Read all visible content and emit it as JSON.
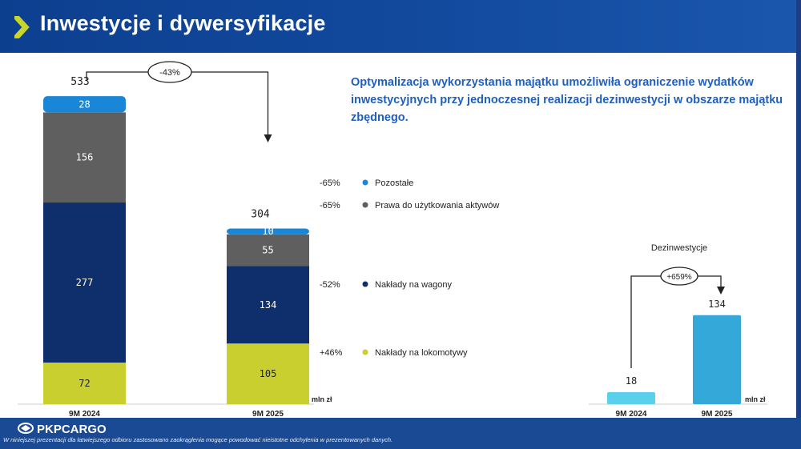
{
  "header": {
    "title": "Inwestycje i dywersyfikacje"
  },
  "headline": "Optymalizacja wykorzystania majątku umożliwiła ograniczenie wydatków inwestycyjnych przy jednoczesnej realizacji dezinwestycji w obszarze majątku zbędnego.",
  "footer": {
    "logo": "PKPCARGO",
    "note": "W niniejszej prezentacji dla łatwiejszego odbioru zastosowano zaokrąglenia mogące powodować nieistotne odchylenia w prezentowanych danych."
  },
  "colors": {
    "pozostale": "#1a86d8",
    "prawa": "#5f5f5f",
    "wagony": "#0e2f6b",
    "lokomotywy": "#c8cf2e",
    "dezinwestycje_2024": "#5ad0ea",
    "dezinwestycje_2025": "#34a9d9"
  },
  "chart_data": [
    {
      "type": "bar",
      "stacked": true,
      "categories": [
        "9M 2024",
        "9M 2025"
      ],
      "unit": "mln zł",
      "totals": [
        "533",
        "304"
      ],
      "total_change": "-43%",
      "series": [
        {
          "name": "Nakłady na lokomotywy",
          "values": [
            72,
            105
          ],
          "labels": [
            "72",
            "105"
          ],
          "change": "+46%"
        },
        {
          "name": "Nakłady na wagony",
          "values": [
            277,
            134
          ],
          "labels": [
            "277",
            "134"
          ],
          "change": "-52%"
        },
        {
          "name": "Prawa do użytkowania aktywów",
          "values": [
            156,
            55
          ],
          "labels": [
            "156",
            "55"
          ],
          "change": "-65%"
        },
        {
          "name": "Pozostałe",
          "values": [
            28,
            10
          ],
          "labels": [
            "28",
            "10"
          ],
          "change": "-65%"
        }
      ]
    },
    {
      "type": "bar",
      "title": "Dezinwestycje",
      "categories": [
        "9M 2024",
        "9M 2025"
      ],
      "values": [
        18,
        134
      ],
      "labels": [
        "18",
        "134"
      ],
      "unit": "mln zł",
      "change": "+659%"
    }
  ]
}
